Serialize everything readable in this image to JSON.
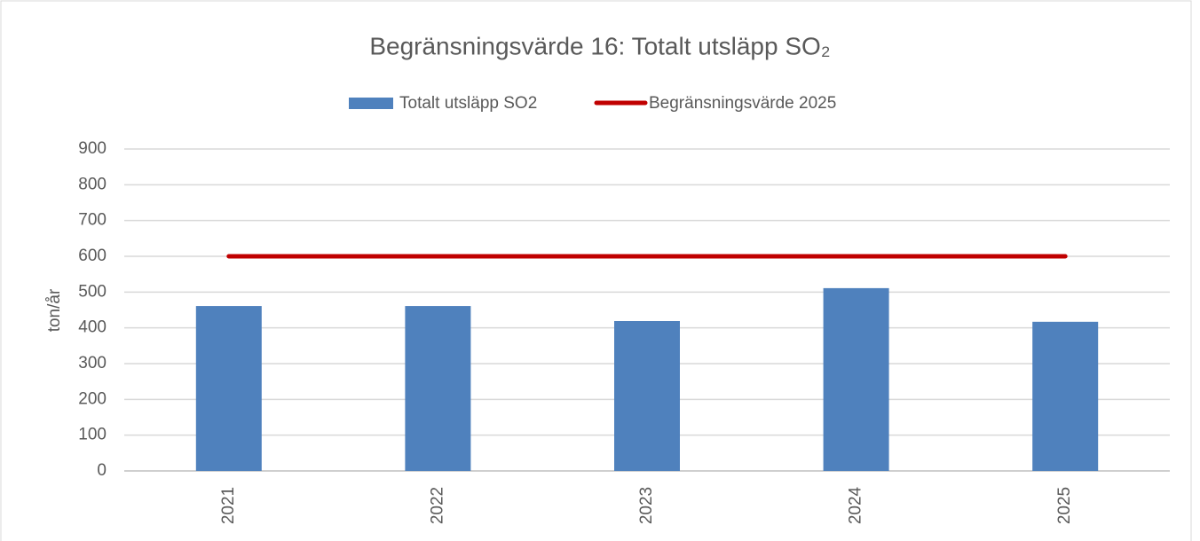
{
  "chart_data": {
    "type": "bar",
    "title": "Begränsningsvärde 16: Totalt utsläpp SO₂",
    "y_label": "ton/år",
    "categories": [
      "2021",
      "2022",
      "2023",
      "2024",
      "2025"
    ],
    "series": [
      {
        "name": "Totalt utsläpp SO2",
        "type": "bar",
        "color": "#4f81bd",
        "values": [
          461,
          461,
          419,
          511,
          417
        ]
      },
      {
        "name": "Begränsningsvärde 2025",
        "type": "line",
        "color": "#c00000",
        "values": [
          600,
          600,
          600,
          600,
          600
        ]
      }
    ],
    "ylim": [
      0,
      900
    ],
    "yticks": [
      0,
      100,
      200,
      300,
      400,
      500,
      600,
      700,
      800,
      900
    ],
    "grid": true,
    "legend": "top"
  }
}
